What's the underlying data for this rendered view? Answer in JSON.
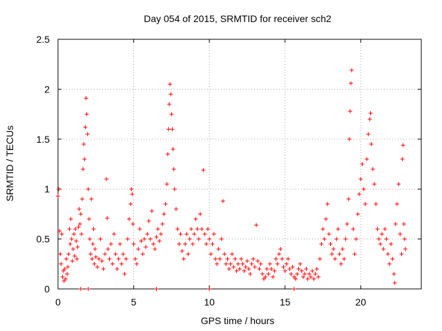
{
  "chart_data": {
    "type": "scatter",
    "title": "Day 054 of 2015, SRMTID for receiver sch2",
    "xlabel": "GPS time / hours",
    "ylabel": "SRMTID / TECUs",
    "xlim": [
      0,
      24
    ],
    "ylim": [
      0,
      2.5
    ],
    "x_ticks": [
      0,
      5,
      10,
      15,
      20
    ],
    "x_tick_labels": [
      "0",
      "5",
      "10",
      "15",
      "20"
    ],
    "y_ticks": [
      0,
      0.5,
      1,
      1.5,
      2,
      2.5
    ],
    "y_tick_labels": [
      "0",
      "0.5",
      "1",
      "1.5",
      "2",
      "2.5"
    ],
    "grid": true,
    "marker": "plus",
    "color": "#ff0000",
    "series": [
      {
        "name": "sch2",
        "points": [
          [
            0.0,
            0.93
          ],
          [
            0.05,
            1.0
          ],
          [
            0.1,
            0.58
          ],
          [
            0.15,
            0.35
          ],
          [
            0.2,
            0.25
          ],
          [
            0.25,
            0.55
          ],
          [
            0.3,
            0.12
          ],
          [
            0.35,
            0.18
          ],
          [
            0.4,
            0.08
          ],
          [
            0.45,
            0.2
          ],
          [
            0.5,
            0.1
          ],
          [
            0.55,
            0.3
          ],
          [
            0.6,
            0.15
          ],
          [
            0.65,
            0.22
          ],
          [
            0.7,
            0.35
          ],
          [
            0.75,
            0.6
          ],
          [
            0.8,
            0.45
          ],
          [
            0.85,
            0.7
          ],
          [
            0.9,
            0.5
          ],
          [
            0.95,
            0.28
          ],
          [
            1.0,
            0.4
          ],
          [
            1.05,
            0.55
          ],
          [
            1.1,
            0.33
          ],
          [
            1.15,
            0.6
          ],
          [
            1.2,
            0.48
          ],
          [
            1.25,
            0.3
          ],
          [
            1.3,
            0.42
          ],
          [
            1.35,
            0.62
          ],
          [
            1.4,
            0.8
          ],
          [
            1.45,
            0.65
          ],
          [
            1.5,
            0.75
          ],
          [
            1.55,
            0.55
          ],
          [
            1.6,
            0.9
          ],
          [
            1.65,
            1.2
          ],
          [
            1.7,
            1.45
          ],
          [
            1.75,
            1.3
          ],
          [
            1.8,
            1.62
          ],
          [
            1.85,
            1.91
          ],
          [
            1.9,
            1.75
          ],
          [
            1.95,
            1.55
          ],
          [
            2.0,
            1.0
          ],
          [
            2.05,
            0.7
          ],
          [
            2.1,
            0.5
          ],
          [
            2.15,
            0.35
          ],
          [
            2.2,
            0.9
          ],
          [
            2.25,
            0.3
          ],
          [
            2.3,
            0.45
          ],
          [
            2.35,
            0.6
          ],
          [
            2.4,
            0.25
          ],
          [
            2.45,
            0.4
          ],
          [
            2.5,
            0.32
          ],
          [
            2.6,
            0.22
          ],
          [
            2.7,
            0.3
          ],
          [
            2.8,
            0.5
          ],
          [
            2.9,
            0.28
          ],
          [
            3.0,
            0.2
          ],
          [
            3.1,
            0.35
          ],
          [
            3.2,
            1.1
          ],
          [
            3.25,
            0.71
          ],
          [
            3.3,
            0.4
          ],
          [
            3.4,
            0.3
          ],
          [
            3.5,
            0.45
          ],
          [
            3.6,
            0.25
          ],
          [
            3.7,
            0.55
          ],
          [
            3.8,
            0.35
          ],
          [
            3.9,
            0.2
          ],
          [
            4.0,
            0.3
          ],
          [
            4.1,
            0.45
          ],
          [
            4.2,
            0.25
          ],
          [
            4.3,
            0.35
          ],
          [
            4.4,
            0.15
          ],
          [
            4.5,
            0.3
          ],
          [
            4.6,
            0.5
          ],
          [
            4.7,
            0.7
          ],
          [
            4.8,
            0.85
          ],
          [
            4.85,
            1.0
          ],
          [
            4.9,
            0.95
          ],
          [
            4.95,
            0.65
          ],
          [
            5.0,
            0.45
          ],
          [
            5.1,
            0.3
          ],
          [
            5.2,
            0.25
          ],
          [
            5.3,
            0.4
          ],
          [
            5.4,
            0.6
          ],
          [
            5.5,
            0.48
          ],
          [
            5.6,
            0.35
          ],
          [
            5.7,
            0.5
          ],
          [
            5.8,
            0.42
          ],
          [
            5.9,
            0.55
          ],
          [
            6.0,
            0.68
          ],
          [
            6.1,
            0.5
          ],
          [
            6.2,
            0.78
          ],
          [
            6.3,
            0.45
          ],
          [
            6.4,
            0.4
          ],
          [
            6.5,
            0.52
          ],
          [
            6.6,
            0.6
          ],
          [
            6.7,
            0.48
          ],
          [
            6.8,
            0.55
          ],
          [
            6.9,
            0.65
          ],
          [
            7.0,
            0.75
          ],
          [
            7.1,
            0.85
          ],
          [
            7.2,
            1.05
          ],
          [
            7.25,
            1.35
          ],
          [
            7.3,
            1.6
          ],
          [
            7.35,
            1.85
          ],
          [
            7.4,
            2.05
          ],
          [
            7.45,
            1.95
          ],
          [
            7.5,
            1.75
          ],
          [
            7.55,
            1.6
          ],
          [
            7.6,
            1.4
          ],
          [
            7.65,
            1.2
          ],
          [
            7.7,
            1.0
          ],
          [
            7.8,
            0.8
          ],
          [
            7.9,
            0.6
          ],
          [
            8.0,
            0.45
          ],
          [
            8.1,
            0.55
          ],
          [
            8.2,
            0.38
          ],
          [
            8.3,
            0.3
          ],
          [
            8.4,
            0.45
          ],
          [
            8.5,
            0.55
          ],
          [
            8.6,
            0.35
          ],
          [
            8.7,
            0.5
          ],
          [
            8.8,
            0.6
          ],
          [
            8.9,
            0.45
          ],
          [
            9.0,
            0.55
          ],
          [
            9.1,
            0.7
          ],
          [
            9.2,
            0.6
          ],
          [
            9.3,
            0.5
          ],
          [
            9.4,
            0.75
          ],
          [
            9.5,
            0.6
          ],
          [
            9.6,
            1.19
          ],
          [
            9.7,
            0.55
          ],
          [
            9.8,
            0.45
          ],
          [
            9.9,
            0.6
          ],
          [
            10.0,
            0.5
          ],
          [
            10.1,
            0.35
          ],
          [
            10.2,
            0.45
          ],
          [
            10.3,
            0.55
          ],
          [
            10.4,
            0.3
          ],
          [
            10.5,
            0.25
          ],
          [
            10.6,
            0.4
          ],
          [
            10.7,
            0.3
          ],
          [
            10.8,
            0.5
          ],
          [
            10.9,
            0.88
          ],
          [
            11.0,
            0.35
          ],
          [
            11.1,
            0.25
          ],
          [
            11.2,
            0.3
          ],
          [
            11.3,
            0.2
          ],
          [
            11.4,
            0.25
          ],
          [
            11.5,
            0.35
          ],
          [
            11.6,
            0.22
          ],
          [
            11.7,
            0.3
          ],
          [
            11.8,
            0.18
          ],
          [
            11.9,
            0.25
          ],
          [
            12.0,
            0.2
          ],
          [
            12.1,
            0.3
          ],
          [
            12.2,
            0.25
          ],
          [
            12.3,
            0.18
          ],
          [
            12.4,
            0.22
          ],
          [
            12.5,
            0.28
          ],
          [
            12.6,
            0.2
          ],
          [
            12.7,
            0.15
          ],
          [
            12.8,
            0.25
          ],
          [
            12.9,
            0.3
          ],
          [
            13.0,
            0.22
          ],
          [
            13.1,
            0.64
          ],
          [
            13.2,
            0.28
          ],
          [
            13.3,
            0.2
          ],
          [
            13.4,
            0.25
          ],
          [
            13.5,
            0.15
          ],
          [
            13.6,
            0.1
          ],
          [
            13.7,
            0.12
          ],
          [
            13.8,
            0.2
          ],
          [
            13.9,
            0.15
          ],
          [
            14.0,
            0.25
          ],
          [
            14.1,
            0.2
          ],
          [
            14.2,
            0.12
          ],
          [
            14.3,
            0.18
          ],
          [
            14.4,
            0.3
          ],
          [
            14.5,
            0.25
          ],
          [
            14.6,
            0.35
          ],
          [
            14.7,
            0.4
          ],
          [
            14.8,
            0.3
          ],
          [
            14.9,
            0.22
          ],
          [
            15.0,
            0.18
          ],
          [
            15.1,
            0.25
          ],
          [
            15.2,
            0.3
          ],
          [
            15.3,
            0.2
          ],
          [
            15.4,
            0.15
          ],
          [
            15.5,
            0.22
          ],
          [
            15.6,
            0.12
          ],
          [
            15.7,
            0.1
          ],
          [
            15.8,
            0.15
          ],
          [
            15.9,
            0.2
          ],
          [
            16.0,
            0.25
          ],
          [
            16.1,
            0.18
          ],
          [
            16.2,
            0.12
          ],
          [
            16.3,
            0.15
          ],
          [
            16.4,
            0.2
          ],
          [
            16.5,
            0.1
          ],
          [
            16.6,
            0.15
          ],
          [
            16.7,
            0.12
          ],
          [
            16.8,
            0.18
          ],
          [
            16.9,
            0.1
          ],
          [
            17.0,
            0.15
          ],
          [
            17.1,
            0.2
          ],
          [
            17.2,
            0.12
          ],
          [
            17.3,
            0.3
          ],
          [
            17.4,
            0.45
          ],
          [
            17.5,
            0.6
          ],
          [
            17.6,
            0.5
          ],
          [
            17.7,
            0.7
          ],
          [
            17.8,
            0.85
          ],
          [
            17.9,
            0.55
          ],
          [
            18.0,
            0.45
          ],
          [
            18.1,
            0.35
          ],
          [
            18.2,
            0.4
          ],
          [
            18.3,
            0.3
          ],
          [
            18.4,
            0.5
          ],
          [
            18.5,
            0.6
          ],
          [
            18.6,
            0.35
          ],
          [
            18.7,
            0.25
          ],
          [
            18.8,
            0.4
          ],
          [
            18.9,
            0.3
          ],
          [
            19.0,
            0.5
          ],
          [
            19.1,
            0.65
          ],
          [
            19.2,
            0.9
          ],
          [
            19.25,
            1.5
          ],
          [
            19.3,
            1.78
          ],
          [
            19.35,
            2.06
          ],
          [
            19.4,
            2.19
          ],
          [
            19.5,
            0.6
          ],
          [
            19.6,
            0.35
          ],
          [
            19.7,
            0.5
          ],
          [
            19.8,
            0.75
          ],
          [
            19.9,
            0.95
          ],
          [
            20.0,
            1.1
          ],
          [
            20.1,
            1.25
          ],
          [
            20.2,
            1.0
          ],
          [
            20.3,
            0.85
          ],
          [
            20.4,
            1.3
          ],
          [
            20.5,
            1.55
          ],
          [
            20.6,
            1.7
          ],
          [
            20.65,
            1.76
          ],
          [
            20.7,
            1.45
          ],
          [
            20.8,
            1.2
          ],
          [
            20.9,
            1.05
          ],
          [
            21.0,
            0.85
          ],
          [
            21.1,
            0.6
          ],
          [
            21.2,
            0.5
          ],
          [
            21.3,
            0.45
          ],
          [
            21.4,
            0.55
          ],
          [
            21.5,
            0.4
          ],
          [
            21.6,
            0.6
          ],
          [
            21.7,
            0.5
          ],
          [
            21.8,
            0.35
          ],
          [
            21.9,
            0.25
          ],
          [
            22.0,
            0.45
          ],
          [
            22.1,
            0.3
          ],
          [
            22.2,
            0.15
          ],
          [
            22.25,
            0.06
          ],
          [
            22.3,
            0.65
          ],
          [
            22.4,
            0.85
          ],
          [
            22.5,
            1.05
          ],
          [
            22.6,
            0.55
          ],
          [
            22.7,
            0.35
          ],
          [
            22.75,
            1.3
          ],
          [
            22.8,
            1.44
          ],
          [
            22.85,
            0.65
          ],
          [
            22.9,
            0.5
          ],
          [
            22.95,
            0.4
          ],
          [
            1.5,
            0.0
          ],
          [
            2.0,
            0.0
          ],
          [
            6.5,
            0.0
          ],
          [
            10.0,
            0.0
          ],
          [
            15.6,
            0.0
          ]
        ]
      }
    ]
  }
}
